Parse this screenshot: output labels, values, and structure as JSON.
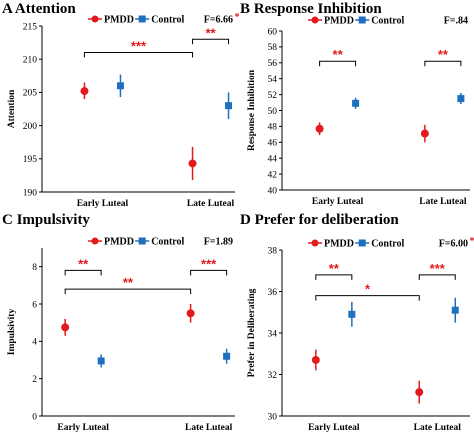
{
  "chart_data": [
    {
      "type": "scatter",
      "panel_letter": "A",
      "title": "Attention",
      "ylabel": "Attention",
      "ylim": [
        190,
        215
      ],
      "yticks": [
        190,
        195,
        200,
        205,
        210,
        215
      ],
      "categories": [
        "Early Luteal",
        "Late Luteal"
      ],
      "legend": [
        "PMDD",
        "Control"
      ],
      "f_stat": "F=6.66",
      "f_star": "*",
      "series": [
        {
          "name": "PMDD",
          "color": "#e31a1c",
          "marker": "circle",
          "values": [
            205.2,
            194.3
          ],
          "err_lo": [
            204.0,
            191.8
          ],
          "err_hi": [
            206.5,
            196.8
          ]
        },
        {
          "name": "Control",
          "color": "#1f6fbf",
          "marker": "square",
          "values": [
            206.0,
            203.0
          ],
          "err_lo": [
            204.3,
            201.0
          ],
          "err_hi": [
            207.7,
            205.0
          ]
        }
      ],
      "significance": [
        {
          "label": "***",
          "from": [
            0,
            "PMDD"
          ],
          "to": [
            1,
            "PMDD"
          ],
          "y": 211.0
        },
        {
          "label": "**",
          "from": [
            1,
            "PMDD"
          ],
          "to": [
            1,
            "Control"
          ],
          "y": 213.0
        }
      ]
    },
    {
      "type": "scatter",
      "panel_letter": "B",
      "title": "Response Inhibition",
      "ylabel": "Response Inhibition",
      "ylim": [
        40,
        60
      ],
      "yticks": [
        40,
        42,
        44,
        46,
        48,
        50,
        52,
        54,
        56,
        58,
        60
      ],
      "categories": [
        "Early Luteal",
        "Late Luteal"
      ],
      "legend": [
        "PMDD",
        "Control"
      ],
      "f_stat": "F=.84",
      "f_star": "",
      "series": [
        {
          "name": "PMDD",
          "color": "#e31a1c",
          "marker": "circle",
          "values": [
            47.7,
            47.1
          ],
          "err_lo": [
            46.9,
            46.0
          ],
          "err_hi": [
            48.5,
            48.2
          ]
        },
        {
          "name": "Control",
          "color": "#1f6fbf",
          "marker": "square",
          "values": [
            50.9,
            51.5
          ],
          "err_lo": [
            50.2,
            50.8
          ],
          "err_hi": [
            51.6,
            52.2
          ]
        }
      ],
      "significance": [
        {
          "label": "**",
          "from": [
            0,
            "PMDD"
          ],
          "to": [
            0,
            "Control"
          ],
          "y": 56.2
        },
        {
          "label": "**",
          "from": [
            1,
            "PMDD"
          ],
          "to": [
            1,
            "Control"
          ],
          "y": 56.2
        }
      ]
    },
    {
      "type": "scatter",
      "panel_letter": "C",
      "title": "Impulsivity",
      "ylabel": "Impulsivity",
      "ylim": [
        0,
        9
      ],
      "yticks": [
        0,
        2,
        4,
        6,
        8
      ],
      "categories": [
        "Early Luteal",
        "Late Luteal"
      ],
      "legend": [
        "PMDD",
        "Control"
      ],
      "f_stat": "F=1.89",
      "f_star": "",
      "series": [
        {
          "name": "PMDD",
          "color": "#e31a1c",
          "marker": "circle",
          "values": [
            4.75,
            5.5
          ],
          "err_lo": [
            4.3,
            5.0
          ],
          "err_hi": [
            5.2,
            6.0
          ]
        },
        {
          "name": "Control",
          "color": "#1f6fbf",
          "marker": "square",
          "values": [
            2.95,
            3.2
          ],
          "err_lo": [
            2.6,
            2.8
          ],
          "err_hi": [
            3.3,
            3.6
          ]
        }
      ],
      "significance": [
        {
          "label": "**",
          "from": [
            0,
            "PMDD"
          ],
          "to": [
            0,
            "Control"
          ],
          "y": 7.8
        },
        {
          "label": "***",
          "from": [
            1,
            "PMDD"
          ],
          "to": [
            1,
            "Control"
          ],
          "y": 7.8
        },
        {
          "label": "**",
          "from": [
            0,
            "PMDD"
          ],
          "to": [
            1,
            "PMDD"
          ],
          "y": 6.8
        }
      ]
    },
    {
      "type": "scatter",
      "panel_letter": "D",
      "title": "Prefer for deliberation",
      "ylabel": "Prefer in Deliberating",
      "ylim": [
        30,
        38
      ],
      "yticks": [
        30,
        32,
        34,
        36,
        38
      ],
      "categories": [
        "Early Luteal",
        "Late Luteal"
      ],
      "legend": [
        "PMDD",
        "Control"
      ],
      "f_stat": "F=6.00",
      "f_star": "*",
      "series": [
        {
          "name": "PMDD",
          "color": "#e31a1c",
          "marker": "circle",
          "values": [
            32.7,
            31.15
          ],
          "err_lo": [
            32.2,
            30.6
          ],
          "err_hi": [
            33.2,
            31.7
          ]
        },
        {
          "name": "Control",
          "color": "#1f6fbf",
          "marker": "square",
          "values": [
            34.9,
            35.1
          ],
          "err_lo": [
            34.3,
            34.5
          ],
          "err_hi": [
            35.5,
            35.7
          ]
        }
      ],
      "significance": [
        {
          "label": "**",
          "from": [
            0,
            "PMDD"
          ],
          "to": [
            0,
            "Control"
          ],
          "y": 36.8
        },
        {
          "label": "***",
          "from": [
            1,
            "PMDD"
          ],
          "to": [
            1,
            "Control"
          ],
          "y": 36.8
        },
        {
          "label": "*",
          "from": [
            0,
            "PMDD"
          ],
          "to": [
            1,
            "PMDD"
          ],
          "y": 35.8
        }
      ]
    }
  ]
}
